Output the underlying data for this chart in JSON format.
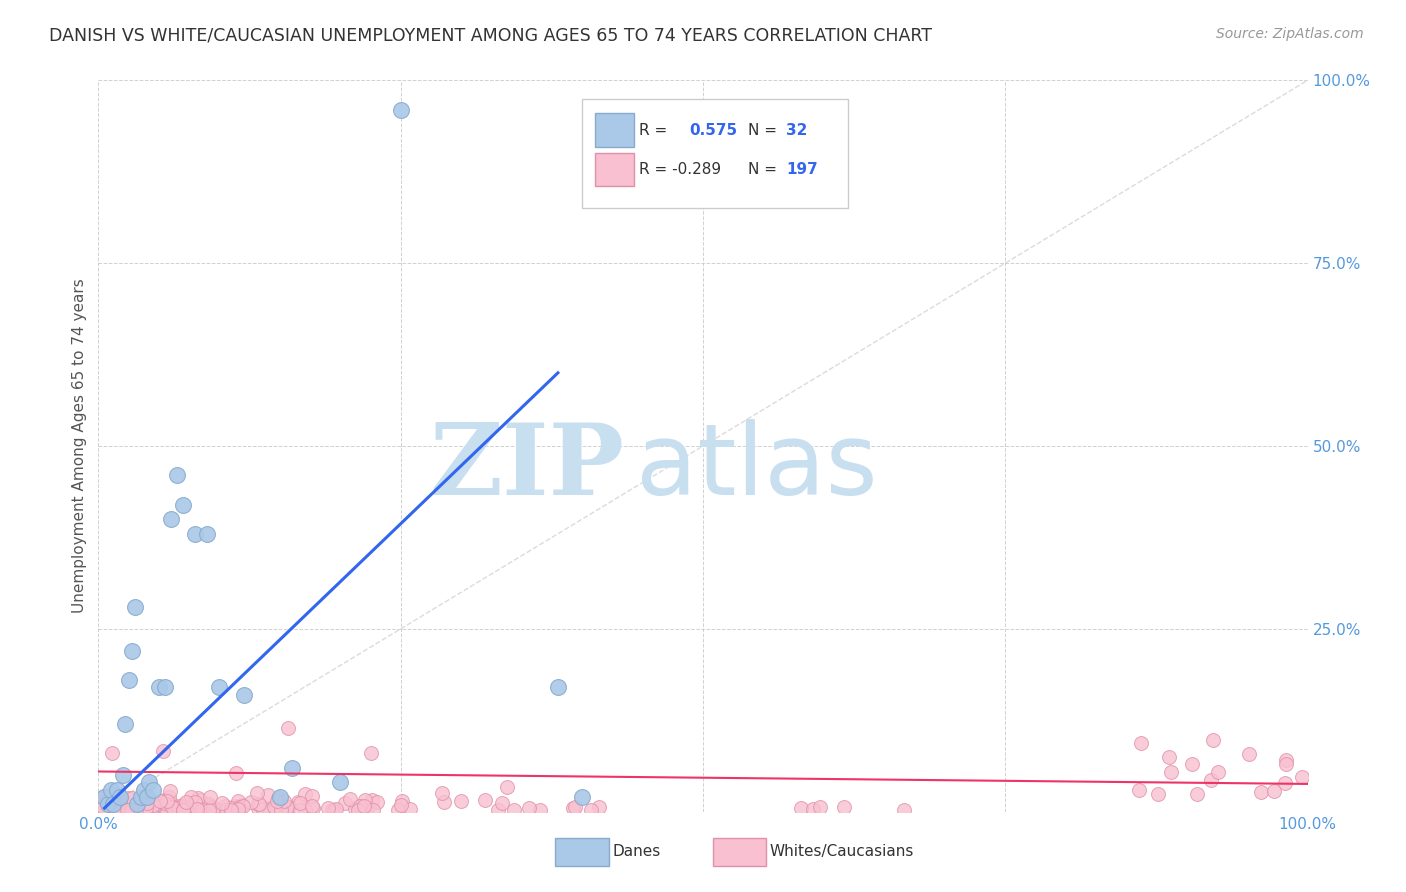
{
  "title": "DANISH VS WHITE/CAUCASIAN UNEMPLOYMENT AMONG AGES 65 TO 74 YEARS CORRELATION CHART",
  "source": "Source: ZipAtlas.com",
  "ylabel": "Unemployment Among Ages 65 to 74 years",
  "xlim": [
    0.0,
    1.0
  ],
  "ylim": [
    0.0,
    1.0
  ],
  "ytick_values": [
    0.0,
    0.25,
    0.5,
    0.75,
    1.0
  ],
  "ytick_labels": [
    "",
    "25.0%",
    "50.0%",
    "75.0%",
    "100.0%"
  ],
  "xtick_values": [
    0.0,
    0.25,
    0.5,
    0.75,
    1.0
  ],
  "xtick_labels": [
    "0.0%",
    "",
    "",
    "",
    "100.0%"
  ],
  "grid_color": "#cccccc",
  "background_color": "#ffffff",
  "danes_color": "#aac8e8",
  "danes_edge_color": "#88aacc",
  "whites_color": "#f8c0d0",
  "whites_edge_color": "#e090a8",
  "danes_line_color": "#3366ee",
  "whites_line_color": "#ee3366",
  "diagonal_color": "#cccccc",
  "watermark_zip_color": "#c8dff0",
  "watermark_atlas_color": "#c8dff0",
  "tick_color": "#5599dd",
  "danes_r": 0.575,
  "danes_n": 32,
  "whites_r": -0.289,
  "whites_n": 197,
  "danes_line_x": [
    0.005,
    0.38
  ],
  "danes_line_y": [
    0.005,
    0.6
  ],
  "whites_line_x": [
    0.0,
    1.0
  ],
  "whites_line_y": [
    0.055,
    0.038
  ],
  "danes_x": [
    0.005,
    0.008,
    0.01,
    0.012,
    0.015,
    0.018,
    0.02,
    0.022,
    0.025,
    0.028,
    0.03,
    0.032,
    0.035,
    0.038,
    0.04,
    0.042,
    0.045,
    0.05,
    0.055,
    0.06,
    0.065,
    0.07,
    0.08,
    0.09,
    0.1,
    0.12,
    0.15,
    0.16,
    0.2,
    0.25,
    0.38,
    0.4
  ],
  "danes_y": [
    0.02,
    0.01,
    0.03,
    0.01,
    0.03,
    0.02,
    0.05,
    0.12,
    0.18,
    0.22,
    0.28,
    0.01,
    0.02,
    0.03,
    0.02,
    0.04,
    0.03,
    0.17,
    0.17,
    0.4,
    0.46,
    0.42,
    0.38,
    0.38,
    0.17,
    0.16,
    0.02,
    0.06,
    0.04,
    0.96,
    0.17,
    0.02
  ],
  "title_fontsize": 12.5,
  "source_fontsize": 10,
  "tick_fontsize": 11,
  "ylabel_fontsize": 11,
  "legend_fontsize": 11,
  "watermark_fontsize": 72
}
